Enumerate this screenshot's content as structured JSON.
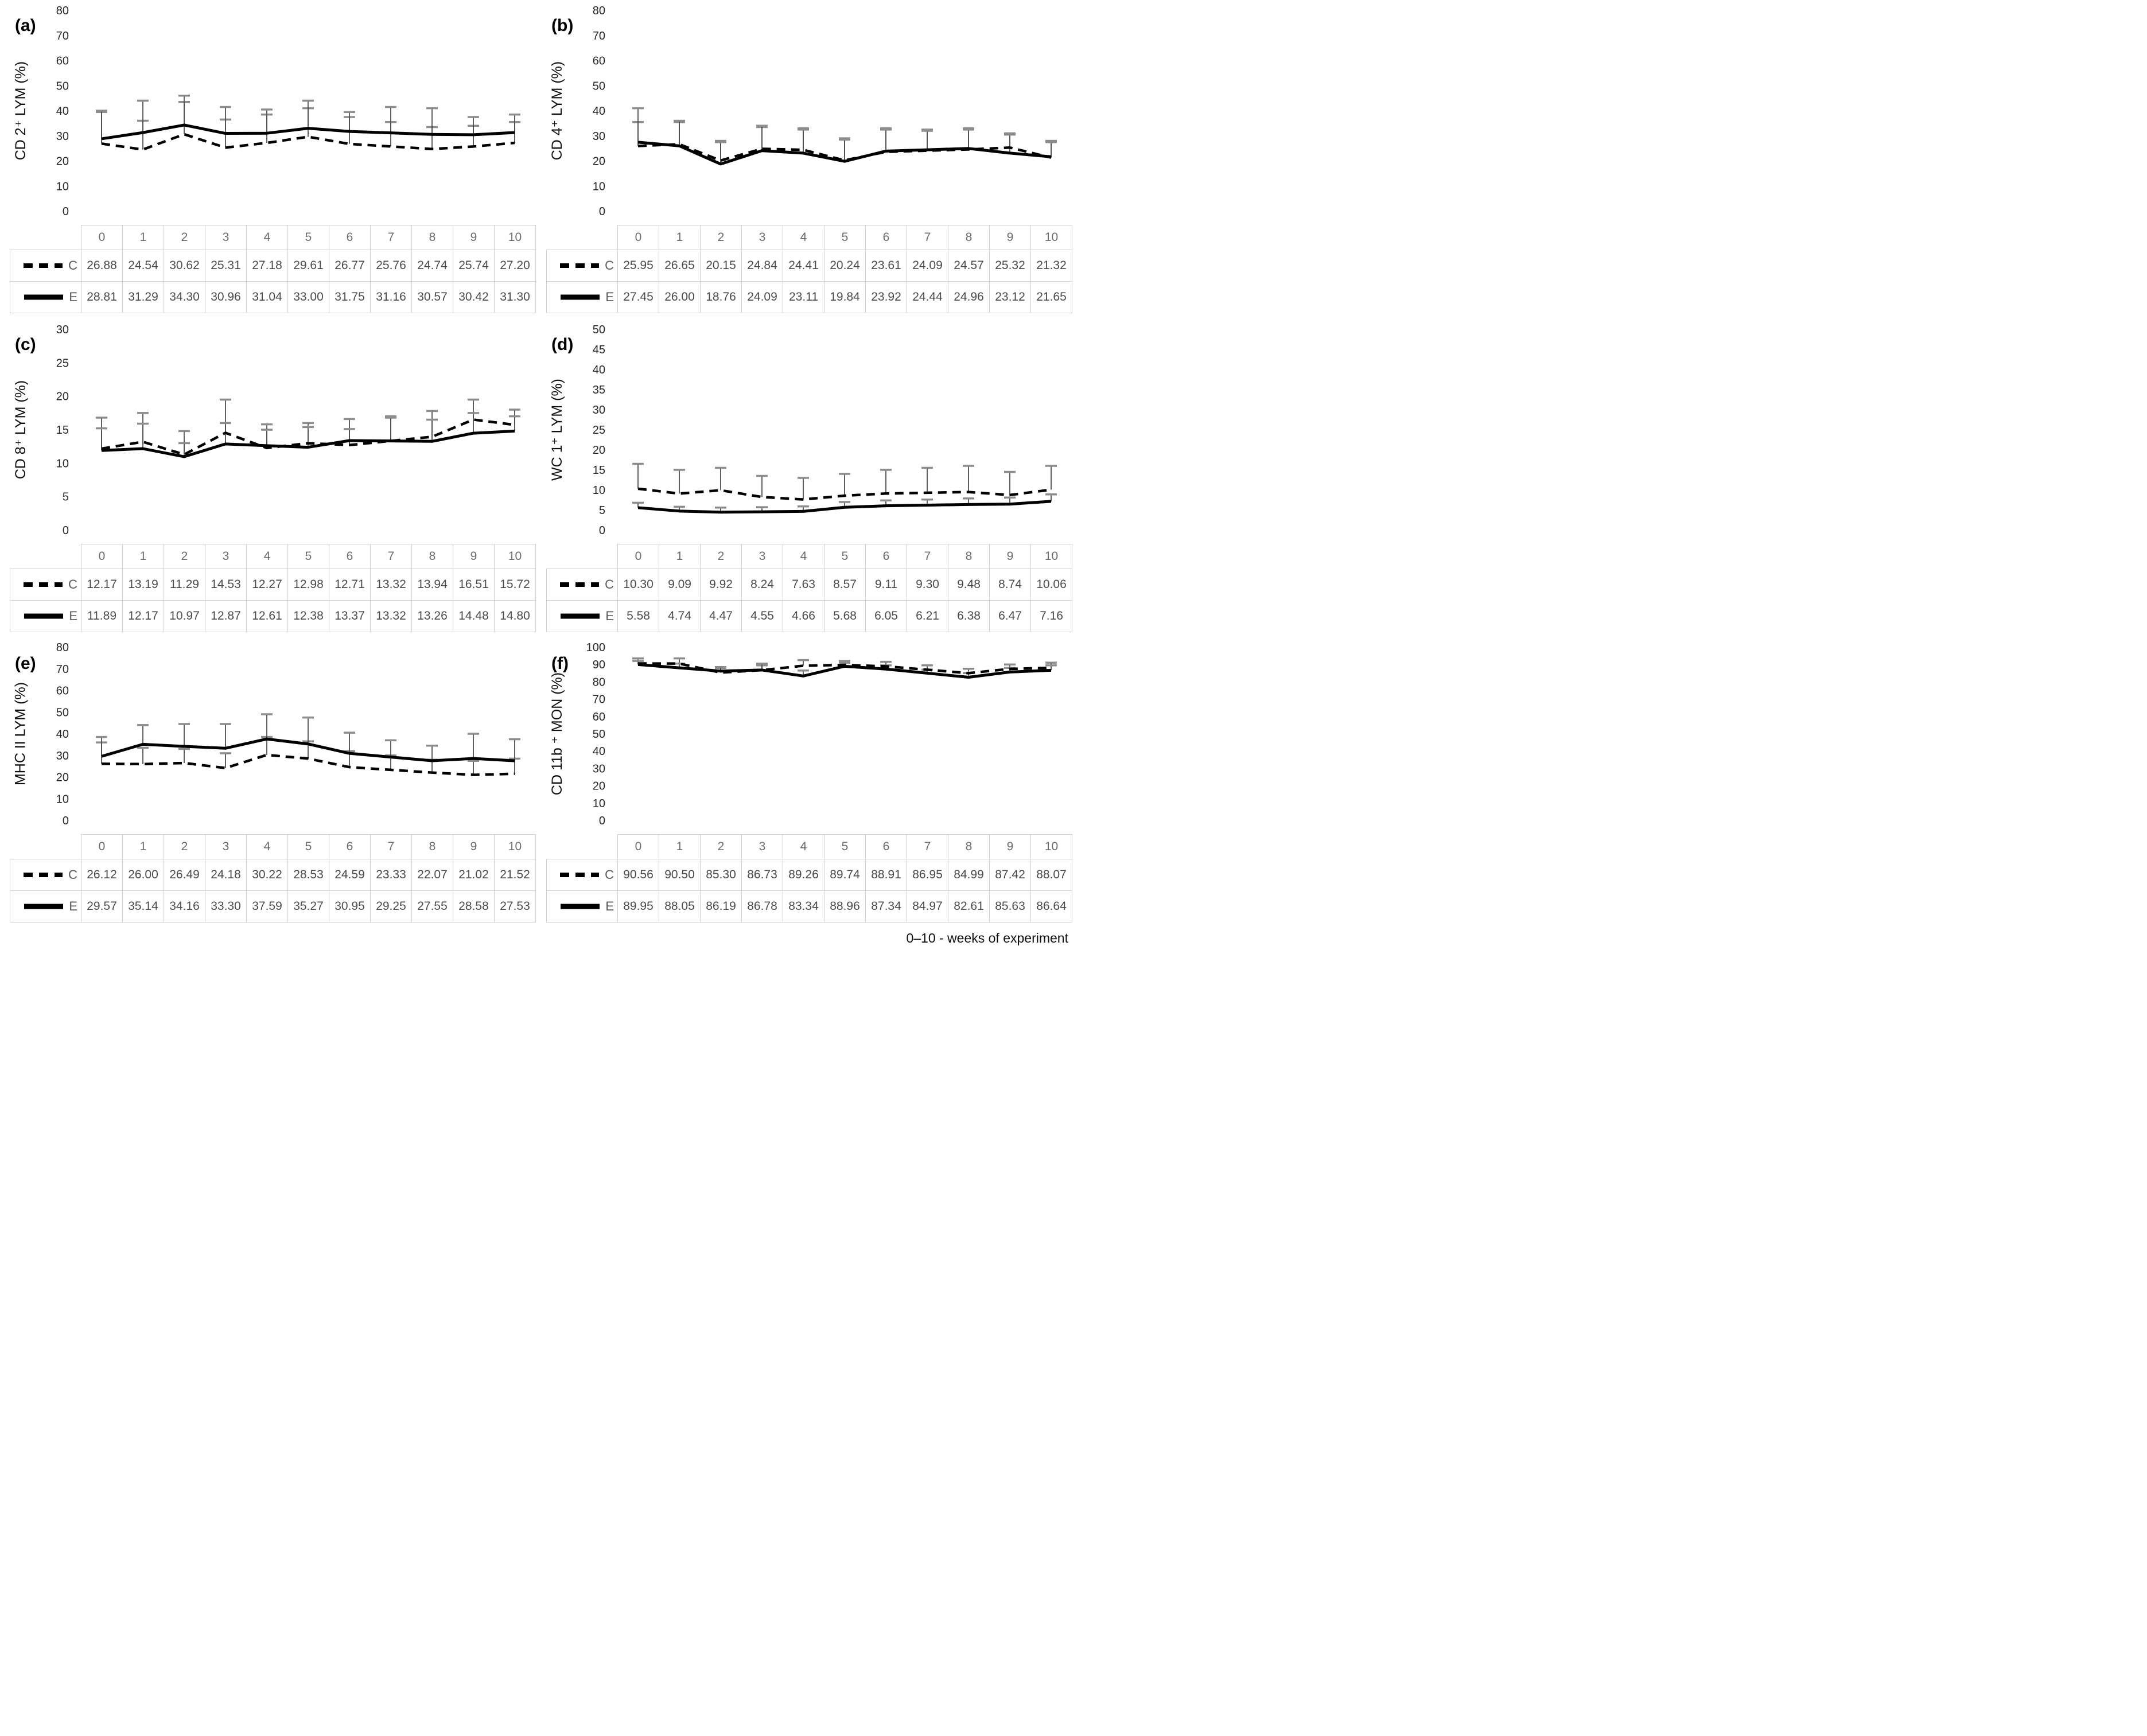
{
  "footer": {
    "note": "0–10 - weeks of experiment"
  },
  "weeks": [
    0,
    1,
    2,
    3,
    4,
    5,
    6,
    7,
    8,
    9,
    10
  ],
  "legend": {
    "control": "C",
    "experimental": "E"
  },
  "colors": {
    "line": "#000000",
    "error_bar": "#4d4d4d",
    "error_cap": "#8c8c8c",
    "table_border": "#cfcfcf",
    "table_text": "#595959"
  },
  "chart_data": [
    {
      "id": "a",
      "panel_label": "(a)",
      "type": "line",
      "ylabel": "CD 2⁺ LYM (%)",
      "xlabel": "",
      "ylim": [
        0,
        80
      ],
      "ystep": 10,
      "grid": false,
      "legend_position": "table-left",
      "categories": [
        0,
        1,
        2,
        3,
        4,
        5,
        6,
        7,
        8,
        9,
        10
      ],
      "series": [
        {
          "name": "C",
          "style": "dashed",
          "values": [
            26.88,
            24.54,
            30.62,
            25.31,
            27.18,
            29.61,
            26.77,
            25.76,
            24.74,
            25.74,
            27.2
          ],
          "err_top": [
            39.5,
            36.0,
            43.5,
            36.5,
            38.5,
            41.0,
            37.5,
            35.5,
            33.5,
            34.0,
            35.5
          ]
        },
        {
          "name": "E",
          "style": "solid",
          "values": [
            28.81,
            31.29,
            34.3,
            30.96,
            31.04,
            33.0,
            31.75,
            31.16,
            30.57,
            30.42,
            31.3
          ],
          "err_top": [
            40.0,
            44.0,
            46.0,
            41.5,
            40.5,
            44.0,
            39.5,
            41.5,
            41.0,
            37.5,
            38.5
          ]
        }
      ]
    },
    {
      "id": "b",
      "panel_label": "(b)",
      "type": "line",
      "ylabel": "CD 4⁺ LYM (%)",
      "xlabel": "",
      "ylim": [
        0,
        80
      ],
      "ystep": 10,
      "grid": false,
      "legend_position": "table-left",
      "categories": [
        0,
        1,
        2,
        3,
        4,
        5,
        6,
        7,
        8,
        9,
        10
      ],
      "series": [
        {
          "name": "C",
          "style": "dashed",
          "values": [
            25.95,
            26.65,
            20.15,
            24.84,
            24.41,
            20.24,
            23.61,
            24.09,
            24.57,
            25.32,
            21.32
          ],
          "err_top": [
            35.5,
            35.5,
            28.0,
            33.5,
            33.0,
            29.0,
            33.0,
            32.5,
            33.0,
            31.0,
            28.0
          ]
        },
        {
          "name": "E",
          "style": "solid",
          "values": [
            27.45,
            26.0,
            18.76,
            24.09,
            23.11,
            19.84,
            23.92,
            24.44,
            24.96,
            23.12,
            21.65
          ],
          "err_top": [
            41.0,
            36.0,
            27.5,
            34.0,
            32.5,
            28.5,
            32.5,
            32.0,
            32.5,
            30.5,
            27.5
          ]
        }
      ]
    },
    {
      "id": "c",
      "panel_label": "(c)",
      "type": "line",
      "ylabel": "CD 8⁺ LYM (%)",
      "xlabel": "",
      "ylim": [
        0,
        30
      ],
      "ystep": 5,
      "grid": false,
      "legend_position": "table-left",
      "categories": [
        0,
        1,
        2,
        3,
        4,
        5,
        6,
        7,
        8,
        9,
        10
      ],
      "series": [
        {
          "name": "C",
          "style": "dashed",
          "values": [
            12.17,
            13.19,
            11.29,
            14.53,
            12.27,
            12.98,
            12.71,
            13.32,
            13.94,
            16.51,
            15.72
          ],
          "err_top": [
            16.8,
            17.5,
            14.8,
            19.5,
            15.8,
            16.0,
            16.6,
            17.0,
            17.8,
            19.5,
            18.0
          ]
        },
        {
          "name": "E",
          "style": "solid",
          "values": [
            11.89,
            12.17,
            10.97,
            12.87,
            12.61,
            12.38,
            13.37,
            13.32,
            13.26,
            14.48,
            14.8
          ],
          "err_top": [
            15.2,
            15.9,
            13.0,
            16.0,
            15.0,
            15.4,
            15.1,
            16.8,
            16.5,
            17.5,
            17.0
          ]
        }
      ]
    },
    {
      "id": "d",
      "panel_label": "(d)",
      "type": "line",
      "ylabel": "WC 1⁺ LYM (%)",
      "xlabel": "",
      "ylim": [
        0,
        50
      ],
      "ystep": 5,
      "grid": false,
      "legend_position": "table-left",
      "categories": [
        0,
        1,
        2,
        3,
        4,
        5,
        6,
        7,
        8,
        9,
        10
      ],
      "series": [
        {
          "name": "C",
          "style": "dashed",
          "values": [
            10.3,
            9.09,
            9.92,
            8.24,
            7.63,
            8.57,
            9.11,
            9.3,
            9.48,
            8.74,
            10.06
          ],
          "err_top": [
            16.5,
            15.0,
            15.5,
            13.5,
            13.0,
            14.0,
            15.0,
            15.5,
            16.0,
            14.5,
            16.0
          ]
        },
        {
          "name": "E",
          "style": "solid",
          "values": [
            5.58,
            4.74,
            4.47,
            4.55,
            4.66,
            5.68,
            6.05,
            6.21,
            6.38,
            6.47,
            7.16
          ],
          "err_top": [
            6.8,
            5.8,
            5.6,
            5.7,
            5.9,
            7.0,
            7.4,
            7.6,
            7.9,
            8.1,
            8.9
          ]
        }
      ]
    },
    {
      "id": "e",
      "panel_label": "(e)",
      "type": "line",
      "ylabel": "MHC II LYM (%)",
      "xlabel": "",
      "ylim": [
        0,
        80
      ],
      "ystep": 10,
      "grid": false,
      "legend_position": "table-left",
      "categories": [
        0,
        1,
        2,
        3,
        4,
        5,
        6,
        7,
        8,
        9,
        10
      ],
      "series": [
        {
          "name": "C",
          "style": "dashed",
          "values": [
            26.12,
            26.0,
            26.49,
            24.18,
            30.22,
            28.53,
            24.59,
            23.33,
            22.07,
            21.02,
            21.52
          ],
          "err_top": [
            36.0,
            33.5,
            33.0,
            31.0,
            38.5,
            36.5,
            32.0,
            30.0,
            28.0,
            27.5,
            28.5
          ]
        },
        {
          "name": "E",
          "style": "solid",
          "values": [
            29.57,
            35.14,
            34.16,
            33.3,
            37.59,
            35.27,
            30.95,
            29.25,
            27.55,
            28.58,
            27.53
          ],
          "err_top": [
            38.5,
            44.0,
            44.5,
            44.5,
            49.0,
            47.5,
            40.5,
            37.0,
            34.5,
            40.0,
            37.5
          ]
        }
      ]
    },
    {
      "id": "f",
      "panel_label": "(f)",
      "type": "line",
      "ylabel": "CD 11b ⁺ MON (%)",
      "xlabel": "",
      "ylim": [
        0,
        100
      ],
      "ystep": 10,
      "grid": false,
      "legend_position": "table-left",
      "categories": [
        0,
        1,
        2,
        3,
        4,
        5,
        6,
        7,
        8,
        9,
        10
      ],
      "series": [
        {
          "name": "C",
          "style": "dashed",
          "values": [
            90.56,
            90.5,
            85.3,
            86.73,
            89.26,
            89.74,
            88.91,
            86.95,
            84.99,
            87.42,
            88.07
          ],
          "err_top": [
            93.5,
            93.5,
            88.0,
            89.5,
            92.5,
            92.0,
            91.5,
            89.5,
            87.5,
            90.0,
            91.0
          ]
        },
        {
          "name": "E",
          "style": "solid",
          "values": [
            89.95,
            88.05,
            86.19,
            86.78,
            83.34,
            88.96,
            87.34,
            84.97,
            82.61,
            85.63,
            86.64
          ],
          "err_top": [
            92.0,
            90.5,
            88.5,
            90.5,
            86.5,
            91.0,
            89.5,
            87.0,
            85.0,
            88.0,
            89.5
          ]
        }
      ]
    }
  ]
}
